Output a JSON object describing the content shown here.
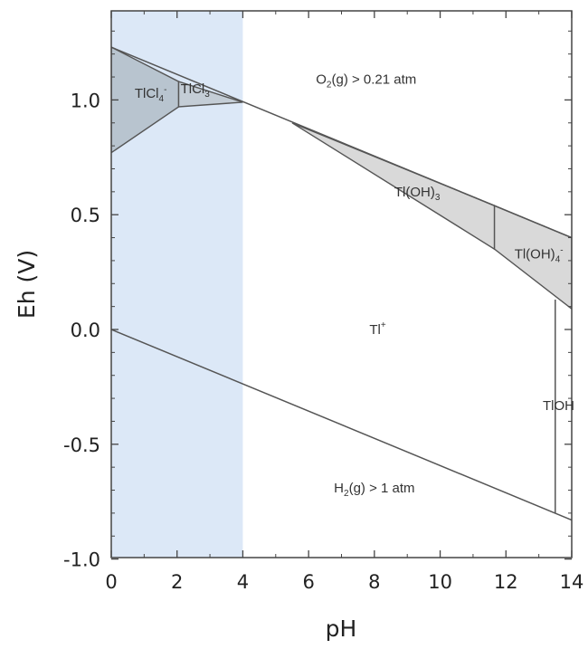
{
  "chart_data": {
    "type": "area",
    "xlabel": "pH",
    "ylabel": "Eh (V)",
    "xlim": [
      0,
      14
    ],
    "ylim": [
      -1.0,
      1.35
    ],
    "x_ticks": [
      0,
      2,
      4,
      6,
      8,
      10,
      12,
      14
    ],
    "x_tick_labels": [
      "0",
      "2",
      "4",
      "6",
      "8",
      "10",
      "12",
      "14"
    ],
    "y_ticks": [
      1.0,
      0.5,
      0.0,
      -0.5,
      -1.0
    ],
    "y_tick_labels": [
      "1.0",
      "0.5",
      "0.0",
      "-0.5",
      "-1.0"
    ],
    "highlight_band": {
      "x": [
        0,
        4
      ],
      "color": "#dce8f7"
    },
    "lines": [
      {
        "name": "water oxidation",
        "points": [
          [
            0,
            1.23
          ],
          [
            14,
            0.4
          ]
        ]
      },
      {
        "name": "water reduction",
        "points": [
          [
            0,
            0.0
          ],
          [
            14,
            -0.83
          ]
        ]
      },
      {
        "name": "TlOH boundary",
        "points": [
          [
            13.5,
            0.13
          ],
          [
            13.5,
            -0.8
          ]
        ]
      }
    ],
    "regions": [
      {
        "label_parts": [
          "TlCl",
          "4",
          "-"
        ],
        "fill": "#b8c4cf",
        "points": [
          [
            0,
            1.23
          ],
          [
            0,
            0.77
          ],
          [
            2.05,
            0.97
          ],
          [
            2.05,
            1.08
          ]
        ]
      },
      {
        "label_parts": [
          "TlCl",
          "3",
          ""
        ],
        "fill": "#c4cdd6",
        "points": [
          [
            2.05,
            1.08
          ],
          [
            2.05,
            0.97
          ],
          [
            4.0,
            0.99
          ]
        ]
      },
      {
        "label_parts": [
          "Tl(OH)",
          "3",
          ""
        ],
        "fill": "#d9d9d9",
        "points": [
          [
            5.5,
            0.9
          ],
          [
            11.65,
            0.54
          ],
          [
            11.65,
            0.35
          ]
        ]
      },
      {
        "label_parts": [
          "Tl(OH)",
          "4",
          "-"
        ],
        "fill": "#d9d9d9",
        "points": [
          [
            11.65,
            0.54
          ],
          [
            14,
            0.4
          ],
          [
            14,
            0.09
          ],
          [
            11.65,
            0.35
          ]
        ]
      }
    ],
    "labels": {
      "o2": {
        "parts": [
          "O",
          "2",
          "(g) > 0.21 atm"
        ],
        "x": 7.75,
        "y": 1.07
      },
      "h2": {
        "parts": [
          "H",
          "2",
          "(g) > 1 atm"
        ],
        "x": 8.0,
        "y": -0.71
      },
      "tl_plus": {
        "text": "Tl",
        "sup": "+",
        "x": 8.1,
        "y": -0.02
      },
      "tloh": {
        "text": "TlOH",
        "x": 13.6,
        "y": -0.35
      },
      "tlcl4": {
        "x": 1.2,
        "y": 1.01
      },
      "tlcl3": {
        "x": 2.55,
        "y": 1.03
      },
      "tloh3": {
        "x": 9.3,
        "y": 0.58
      },
      "tloh4": {
        "x": 13.0,
        "y": 0.31
      }
    }
  }
}
